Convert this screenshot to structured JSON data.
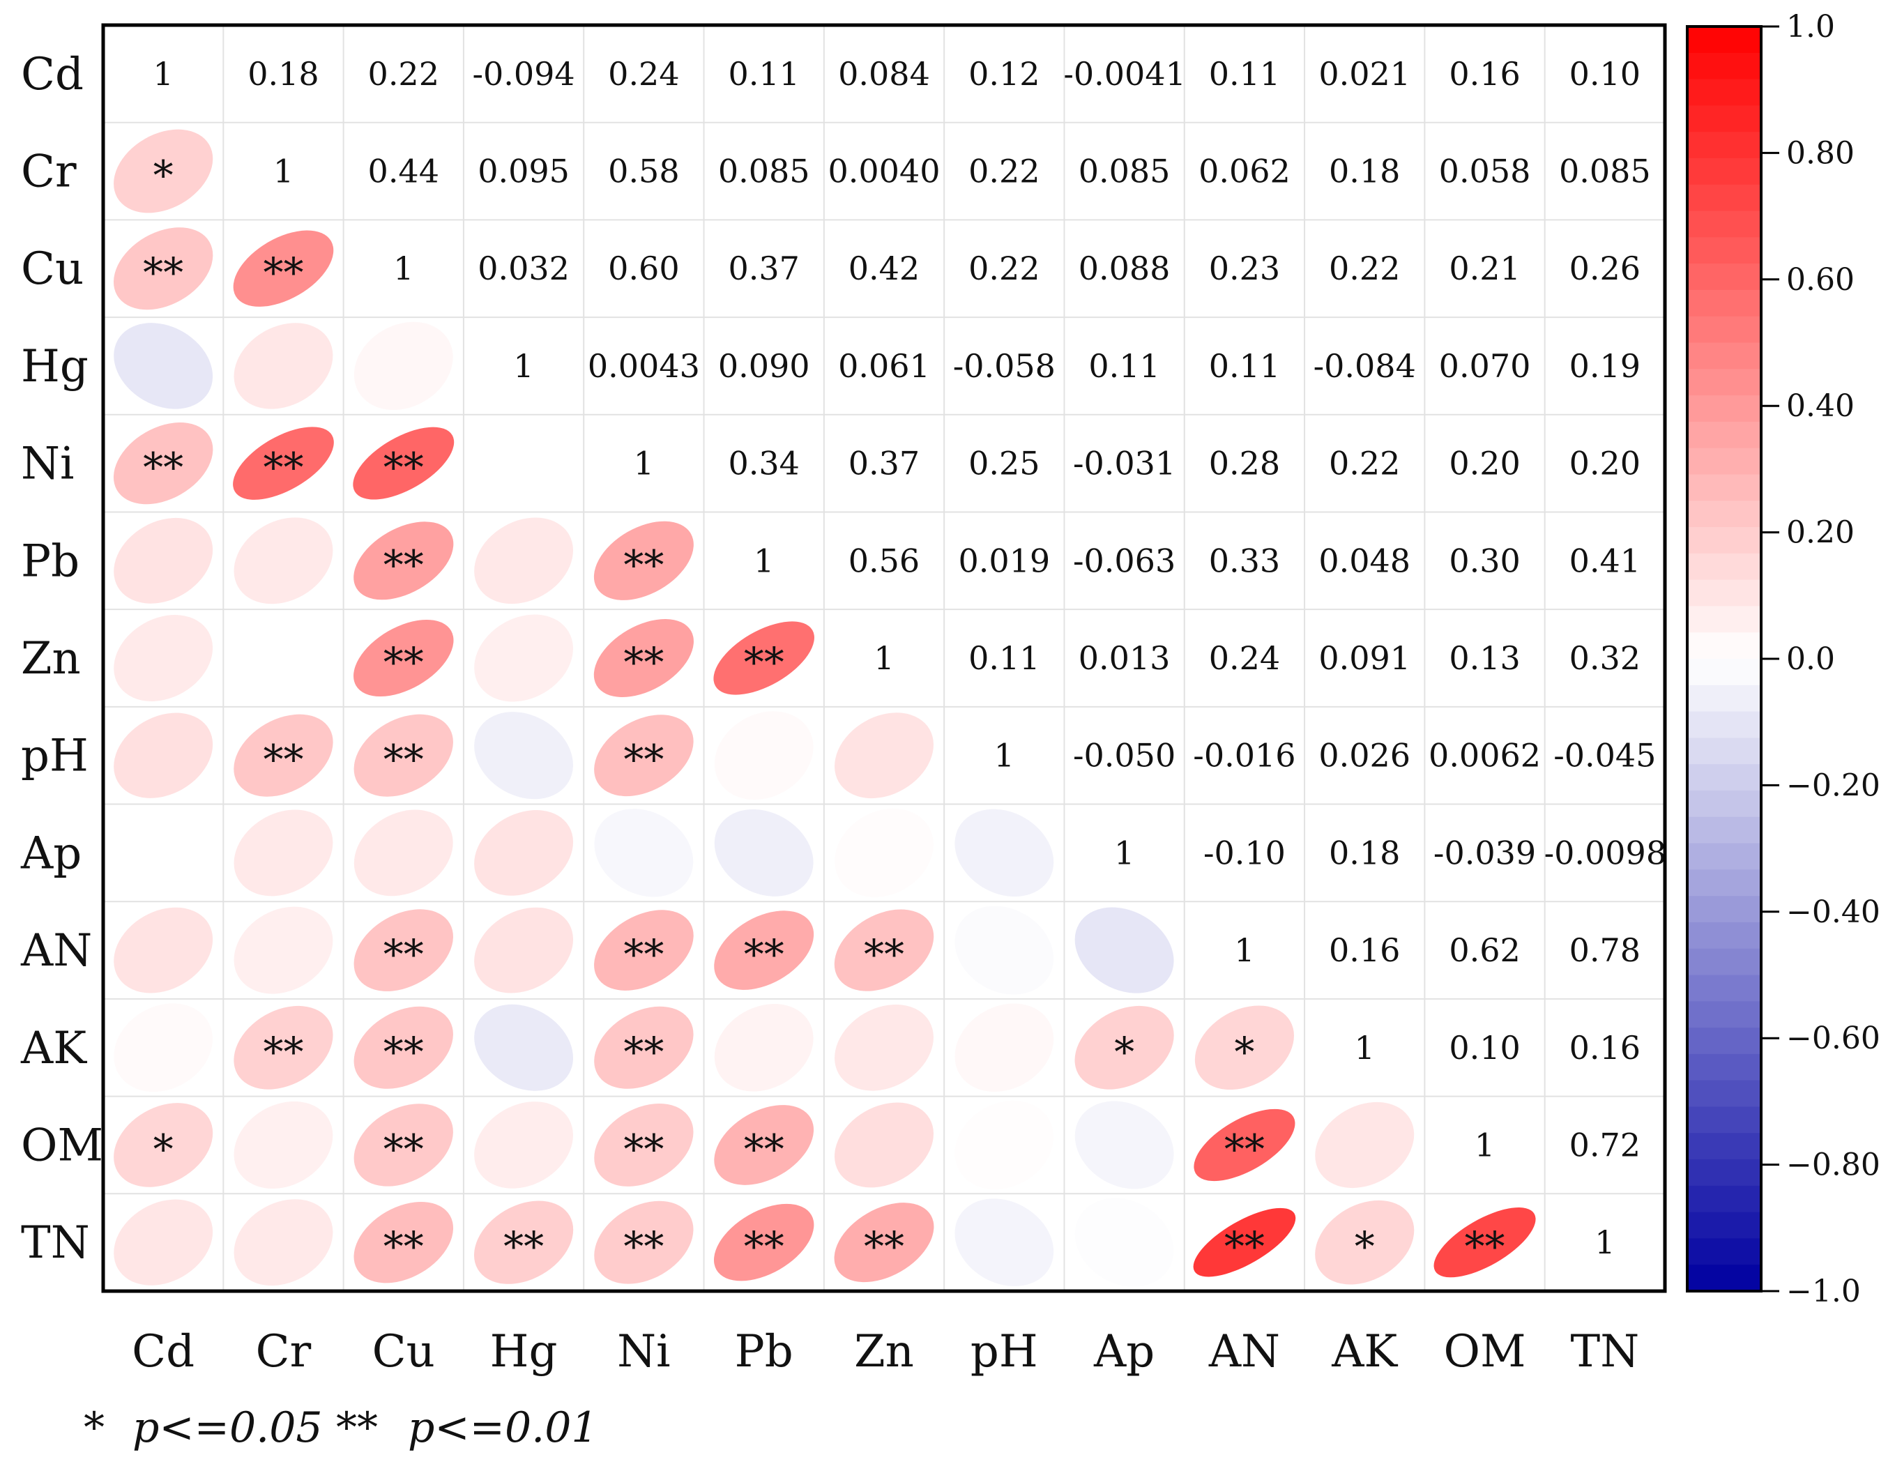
{
  "chart_data": {
    "type": "heatmap",
    "subtype": "correlation-matrix",
    "variables": [
      "Cd",
      "Cr",
      "Cu",
      "Hg",
      "Ni",
      "Pb",
      "Zn",
      "pH",
      "Ap",
      "AN",
      "AK",
      "OM",
      "TN"
    ],
    "values": [
      [
        "1",
        "0.18",
        "0.22",
        "-0.094",
        "0.24",
        "0.11",
        "0.084",
        "0.12",
        "-0.0041",
        "0.11",
        "0.021",
        "0.16",
        "0.10"
      ],
      [
        "0.18",
        "1",
        "0.44",
        "0.095",
        "0.58",
        "0.085",
        "0.0040",
        "0.22",
        "0.085",
        "0.062",
        "0.18",
        "0.058",
        "0.085"
      ],
      [
        "0.22",
        "0.44",
        "1",
        "0.032",
        "0.60",
        "0.37",
        "0.42",
        "0.22",
        "0.088",
        "0.23",
        "0.22",
        "0.21",
        "0.26"
      ],
      [
        "-0.094",
        "0.095",
        "0.032",
        "1",
        "0.0043",
        "0.090",
        "0.061",
        "-0.058",
        "0.11",
        "0.11",
        "-0.084",
        "0.070",
        "0.19"
      ],
      [
        "0.24",
        "0.58",
        "0.60",
        "0.0043",
        "1",
        "0.34",
        "0.37",
        "0.25",
        "-0.031",
        "0.28",
        "0.22",
        "0.20",
        "0.20"
      ],
      [
        "0.11",
        "0.085",
        "0.37",
        "0.090",
        "0.34",
        "1",
        "0.56",
        "0.019",
        "-0.063",
        "0.33",
        "0.048",
        "0.30",
        "0.41"
      ],
      [
        "0.084",
        "0.0040",
        "0.42",
        "0.061",
        "0.37",
        "0.56",
        "1",
        "0.11",
        "0.013",
        "0.24",
        "0.091",
        "0.13",
        "0.32"
      ],
      [
        "0.12",
        "0.22",
        "0.22",
        "-0.058",
        "0.25",
        "0.019",
        "0.11",
        "1",
        "-0.050",
        "-0.016",
        "0.026",
        "0.0062",
        "-0.045"
      ],
      [
        "-0.0041",
        "0.085",
        "0.088",
        "0.11",
        "-0.031",
        "-0.063",
        "0.013",
        "-0.050",
        "1",
        "-0.10",
        "0.18",
        "-0.039",
        "-0.0098"
      ],
      [
        "0.11",
        "0.062",
        "0.23",
        "0.11",
        "0.28",
        "0.33",
        "0.24",
        "-0.016",
        "-0.10",
        "1",
        "0.16",
        "0.62",
        "0.78"
      ],
      [
        "0.021",
        "0.18",
        "0.22",
        "-0.084",
        "0.22",
        "0.048",
        "0.091",
        "0.026",
        "0.18",
        "0.16",
        "1",
        "0.10",
        "0.16"
      ],
      [
        "0.16",
        "0.058",
        "0.21",
        "0.070",
        "0.20",
        "0.30",
        "0.13",
        "0.0062",
        "-0.039",
        "0.62",
        "0.10",
        "1",
        "0.72"
      ],
      [
        "0.10",
        "0.085",
        "0.26",
        "0.19",
        "0.20",
        "0.41",
        "0.32",
        "-0.045",
        "-0.0098",
        "0.78",
        "0.16",
        "0.72",
        "1"
      ]
    ],
    "significance_lower": [
      [
        "",
        "",
        "",
        "",
        "",
        "",
        "",
        "",
        "",
        "",
        "",
        "",
        ""
      ],
      [
        "*",
        "",
        "",
        "",
        "",
        "",
        "",
        "",
        "",
        "",
        "",
        "",
        ""
      ],
      [
        "**",
        "**",
        "",
        "",
        "",
        "",
        "",
        "",
        "",
        "",
        "",
        "",
        ""
      ],
      [
        "",
        "",
        "",
        "",
        "",
        "",
        "",
        "",
        "",
        "",
        "",
        "",
        ""
      ],
      [
        "**",
        "**",
        "**",
        "",
        "",
        "",
        "",
        "",
        "",
        "",
        "",
        "",
        ""
      ],
      [
        "",
        "",
        "**",
        "",
        "**",
        "",
        "",
        "",
        "",
        "",
        "",
        "",
        ""
      ],
      [
        "",
        "",
        "**",
        "",
        "**",
        "**",
        "",
        "",
        "",
        "",
        "",
        "",
        ""
      ],
      [
        "",
        "**",
        "**",
        "",
        "**",
        "",
        "",
        "",
        "",
        "",
        "",
        "",
        ""
      ],
      [
        "",
        "",
        "",
        "",
        "",
        "",
        "",
        "",
        "",
        "",
        "",
        "",
        ""
      ],
      [
        "",
        "",
        "**",
        "",
        "**",
        "**",
        "**",
        "",
        "",
        "",
        "",
        "",
        ""
      ],
      [
        "",
        "**",
        "**",
        "",
        "**",
        "",
        "",
        "",
        "*",
        "*",
        "",
        "",
        ""
      ],
      [
        "*",
        "",
        "**",
        "",
        "**",
        "**",
        "",
        "",
        "",
        "**",
        "",
        "",
        ""
      ],
      [
        "",
        "",
        "**",
        "**",
        "**",
        "**",
        "**",
        "",
        "",
        "**",
        "*",
        "**",
        ""
      ]
    ],
    "colorbar": {
      "range": [
        -1.0,
        1.0
      ],
      "ticks": [
        "1.0",
        "0.80",
        "0.60",
        "0.40",
        "0.20",
        "0.0",
        "−0.20",
        "−0.40",
        "−0.60",
        "−0.80",
        "−1.0"
      ],
      "colors": {
        "positive": "#ff0000",
        "neutral": "#ffffff",
        "negative": "#0000a0"
      }
    },
    "legend": {
      "one_star": "*",
      "one_star_text": "p<=0.05",
      "two_star": "**",
      "two_star_text": "p<=0.01"
    }
  }
}
